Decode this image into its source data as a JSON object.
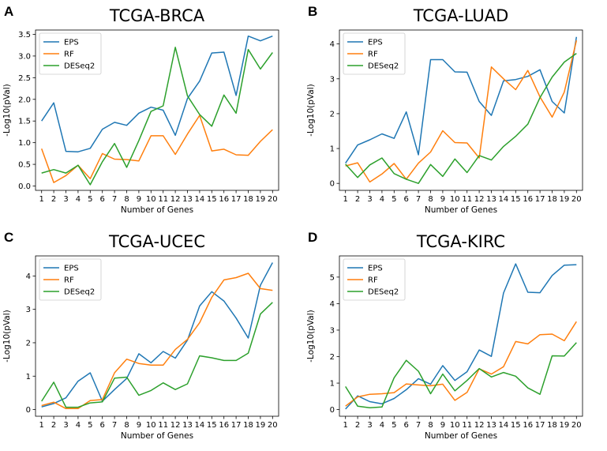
{
  "colors": {
    "EPS": "#1f77b4",
    "RF": "#ff7f0e",
    "DESeq2": "#2ca02c"
  },
  "chart_data": [
    {
      "type": "line",
      "letter": "A",
      "title": "TCGA-BRCA",
      "xlabel": "Number of Genes",
      "ylabel": "-Log10(pVal)",
      "x": [
        1,
        2,
        3,
        4,
        5,
        6,
        7,
        8,
        9,
        10,
        11,
        12,
        13,
        14,
        15,
        16,
        17,
        18,
        19,
        20
      ],
      "xlim": [
        0.5,
        20.5
      ],
      "ylim": [
        -0.1,
        3.6
      ],
      "yticks": [
        0.0,
        0.5,
        1.0,
        1.5,
        2.0,
        2.5,
        3.0,
        3.5
      ],
      "ytick_labels": [
        "0.0",
        "0.5",
        "1.0",
        "1.5",
        "2.0",
        "2.5",
        "3.0",
        "3.5"
      ],
      "legend": "top-left",
      "series": [
        {
          "name": "EPS",
          "values": [
            1.5,
            1.92,
            0.8,
            0.79,
            0.87,
            1.31,
            1.47,
            1.4,
            1.68,
            1.82,
            1.75,
            1.17,
            2.02,
            2.42,
            3.07,
            3.09,
            2.09,
            3.46,
            3.35,
            3.46
          ]
        },
        {
          "name": "RF",
          "values": [
            0.86,
            0.08,
            0.24,
            0.48,
            0.17,
            0.75,
            0.62,
            0.61,
            0.58,
            1.16,
            1.16,
            0.73,
            1.2,
            1.63,
            0.81,
            0.85,
            0.72,
            0.71,
            1.03,
            1.3
          ]
        },
        {
          "name": "DESeq2",
          "values": [
            0.3,
            0.38,
            0.3,
            0.48,
            0.03,
            0.56,
            0.98,
            0.43,
            1.05,
            1.72,
            1.85,
            3.2,
            2.08,
            1.65,
            1.38,
            2.1,
            1.68,
            3.15,
            2.7,
            3.08
          ]
        }
      ]
    },
    {
      "type": "line",
      "letter": "B",
      "title": "TCGA-LUAD",
      "xlabel": "Number of Genes",
      "ylabel": "-Log10(pVal)",
      "x": [
        1,
        2,
        3,
        4,
        5,
        6,
        7,
        8,
        9,
        10,
        11,
        12,
        13,
        14,
        15,
        16,
        17,
        18,
        19,
        20
      ],
      "xlim": [
        0.5,
        20.5
      ],
      "ylim": [
        -0.2,
        4.4
      ],
      "yticks": [
        0,
        1,
        2,
        3,
        4
      ],
      "ytick_labels": [
        "0",
        "1",
        "2",
        "3",
        "4"
      ],
      "legend": "top-left",
      "series": [
        {
          "name": "EPS",
          "values": [
            0.58,
            1.1,
            1.25,
            1.42,
            1.29,
            2.05,
            0.82,
            3.55,
            3.55,
            3.2,
            3.19,
            2.35,
            1.95,
            2.94,
            2.98,
            3.07,
            3.26,
            2.35,
            2.02,
            4.2
          ]
        },
        {
          "name": "RF",
          "values": [
            0.5,
            0.59,
            0.04,
            0.27,
            0.57,
            0.12,
            0.58,
            0.9,
            1.51,
            1.17,
            1.16,
            0.73,
            3.34,
            3.0,
            2.69,
            3.24,
            2.48,
            1.9,
            2.62,
            4.1
          ]
        },
        {
          "name": "DESeq2",
          "values": [
            0.55,
            0.17,
            0.53,
            0.73,
            0.28,
            0.12,
            0.0,
            0.54,
            0.2,
            0.7,
            0.31,
            0.8,
            0.67,
            1.06,
            1.35,
            1.7,
            2.46,
            3.05,
            3.48,
            3.73
          ]
        }
      ]
    },
    {
      "type": "line",
      "letter": "C",
      "title": "TCGA-UCEC",
      "xlabel": "Number of Genes",
      "ylabel": "-Log10(pVal)",
      "x": [
        1,
        2,
        3,
        4,
        5,
        6,
        7,
        8,
        9,
        10,
        11,
        12,
        13,
        14,
        15,
        16,
        17,
        18,
        19,
        20
      ],
      "xlim": [
        0.5,
        20.5
      ],
      "ylim": [
        -0.2,
        4.6
      ],
      "yticks": [
        0,
        1,
        2,
        3,
        4
      ],
      "ytick_labels": [
        "0",
        "1",
        "2",
        "3",
        "4"
      ],
      "legend": "top-left",
      "series": [
        {
          "name": "EPS",
          "values": [
            0.08,
            0.18,
            0.35,
            0.85,
            1.1,
            0.25,
            0.6,
            0.93,
            1.67,
            1.4,
            1.74,
            1.54,
            2.08,
            3.1,
            3.53,
            3.25,
            2.74,
            2.14,
            3.72,
            4.4
          ]
        },
        {
          "name": "RF",
          "values": [
            0.12,
            0.22,
            0.03,
            0.03,
            0.27,
            0.3,
            1.1,
            1.51,
            1.38,
            1.33,
            1.33,
            1.8,
            2.1,
            2.6,
            3.36,
            3.88,
            3.95,
            4.08,
            3.62,
            3.57
          ]
        },
        {
          "name": "DESeq2",
          "values": [
            0.25,
            0.82,
            0.07,
            0.07,
            0.2,
            0.23,
            0.94,
            0.97,
            0.43,
            0.57,
            0.8,
            0.6,
            0.77,
            1.61,
            1.55,
            1.47,
            1.47,
            1.69,
            2.86,
            3.21
          ]
        }
      ]
    },
    {
      "type": "line",
      "letter": "D",
      "title": "TCGA-KIRC",
      "xlabel": "Number of Genes",
      "ylabel": "-Log10(pVal)",
      "x": [
        1,
        2,
        3,
        4,
        5,
        6,
        7,
        8,
        9,
        10,
        11,
        12,
        13,
        14,
        15,
        16,
        17,
        18,
        19,
        20
      ],
      "xlim": [
        0.5,
        20.5
      ],
      "ylim": [
        -0.25,
        5.8
      ],
      "yticks": [
        0,
        1,
        2,
        3,
        4,
        5
      ],
      "ytick_labels": [
        "0",
        "1",
        "2",
        "3",
        "4",
        "5"
      ],
      "legend": "top-left",
      "series": [
        {
          "name": "EPS",
          "values": [
            0.02,
            0.52,
            0.3,
            0.22,
            0.42,
            0.75,
            1.17,
            0.96,
            1.66,
            1.1,
            1.43,
            2.25,
            2.01,
            4.4,
            5.5,
            4.43,
            4.41,
            5.06,
            5.45,
            5.47
          ]
        },
        {
          "name": "RF",
          "values": [
            0.13,
            0.48,
            0.58,
            0.6,
            0.64,
            0.97,
            0.93,
            0.9,
            0.96,
            0.35,
            0.65,
            1.54,
            1.34,
            1.62,
            2.57,
            2.48,
            2.83,
            2.85,
            2.6,
            3.32
          ]
        },
        {
          "name": "DESeq2",
          "values": [
            0.87,
            0.13,
            0.07,
            0.1,
            1.2,
            1.86,
            1.45,
            0.6,
            1.34,
            0.71,
            1.1,
            1.55,
            1.23,
            1.4,
            1.26,
            0.82,
            0.58,
            2.03,
            2.02,
            2.53
          ]
        }
      ]
    }
  ]
}
